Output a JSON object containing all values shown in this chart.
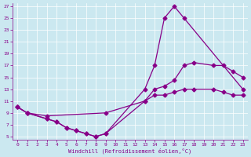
{
  "xlabel": "Windchill (Refroidissement éolien,°C)",
  "bg_color": "#cbe8f0",
  "line_color": "#880088",
  "xlim": [
    -0.5,
    23.5
  ],
  "ylim": [
    4.5,
    27.5
  ],
  "xticks": [
    0,
    1,
    2,
    3,
    4,
    5,
    6,
    7,
    8,
    9,
    10,
    11,
    12,
    13,
    14,
    15,
    16,
    17,
    18,
    19,
    20,
    21,
    22,
    23
  ],
  "yticks": [
    5,
    7,
    9,
    11,
    13,
    15,
    17,
    19,
    21,
    23,
    25,
    27
  ],
  "line1_x": [
    0,
    1,
    3,
    4,
    5,
    6,
    7,
    8,
    9,
    13,
    14,
    15,
    16,
    17,
    23
  ],
  "line1_y": [
    10,
    9,
    8,
    7.5,
    6.5,
    6,
    5.5,
    5,
    5.5,
    13,
    17,
    25,
    27,
    25,
    13
  ],
  "line2_x": [
    0,
    1,
    3,
    4,
    5,
    6,
    7,
    8,
    9,
    13,
    14,
    15,
    16,
    17,
    18,
    20,
    21,
    22,
    23
  ],
  "line2_y": [
    10,
    9,
    8,
    7.5,
    6.5,
    6,
    5.5,
    5,
    5.5,
    11,
    13,
    13.5,
    14.5,
    17,
    17.5,
    17,
    17,
    16,
    15
  ],
  "line3_x": [
    0,
    1,
    3,
    9,
    13,
    14,
    15,
    16,
    17,
    18,
    20,
    21,
    22,
    23
  ],
  "line3_y": [
    10,
    9,
    8.5,
    9,
    11,
    12,
    12,
    12.5,
    13,
    13,
    13,
    12.5,
    12,
    12
  ]
}
